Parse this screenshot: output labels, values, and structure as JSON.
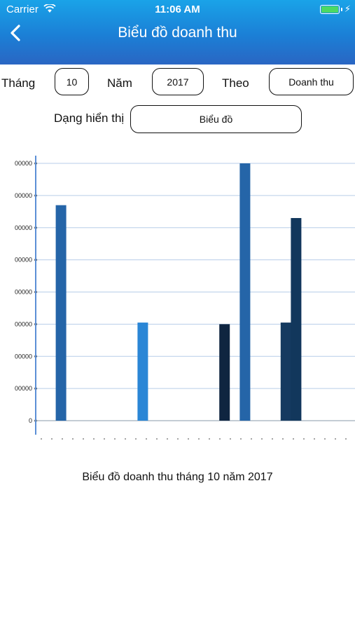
{
  "status_bar": {
    "carrier": "Carrier",
    "time": "11:06 AM"
  },
  "header": {
    "title": "Biểu đồ doanh thu"
  },
  "filters": {
    "month_label": "Tháng",
    "month_value": "10",
    "year_label": "Năm",
    "year_value": "2017",
    "by_label": "Theo",
    "by_value": "Doanh thu",
    "display_label": "Dạng hiển thị",
    "display_value": "Biểu đồ"
  },
  "colors": {
    "header_top": "#1aa3e8",
    "header_bottom": "#2a66c3",
    "grid": "#b7cde8",
    "axis": "#5b8fd6"
  },
  "chart_data": {
    "type": "bar",
    "y_tick_labels": [
      "0",
      "00000",
      "00000",
      "00000",
      "00000",
      "00000",
      "00000",
      "00000",
      "00000"
    ],
    "ylim": [
      0,
      8
    ],
    "grid": true,
    "bars": [
      {
        "index": 1,
        "value": 6.7,
        "color": "#2565a8"
      },
      {
        "index": 9,
        "value": 3.05,
        "color": "#2a86d6"
      },
      {
        "index": 17,
        "value": 3.0,
        "color": "#0f2540"
      },
      {
        "index": 19,
        "value": 8.0,
        "color": "#2565a8"
      },
      {
        "index": 23,
        "value": 3.05,
        "color": "#153a60"
      },
      {
        "index": 24,
        "value": 6.3,
        "color": "#12375c"
      }
    ],
    "slot_count": 30,
    "caption": "Biểu đồ doanh thu tháng 10 năm 2017"
  }
}
